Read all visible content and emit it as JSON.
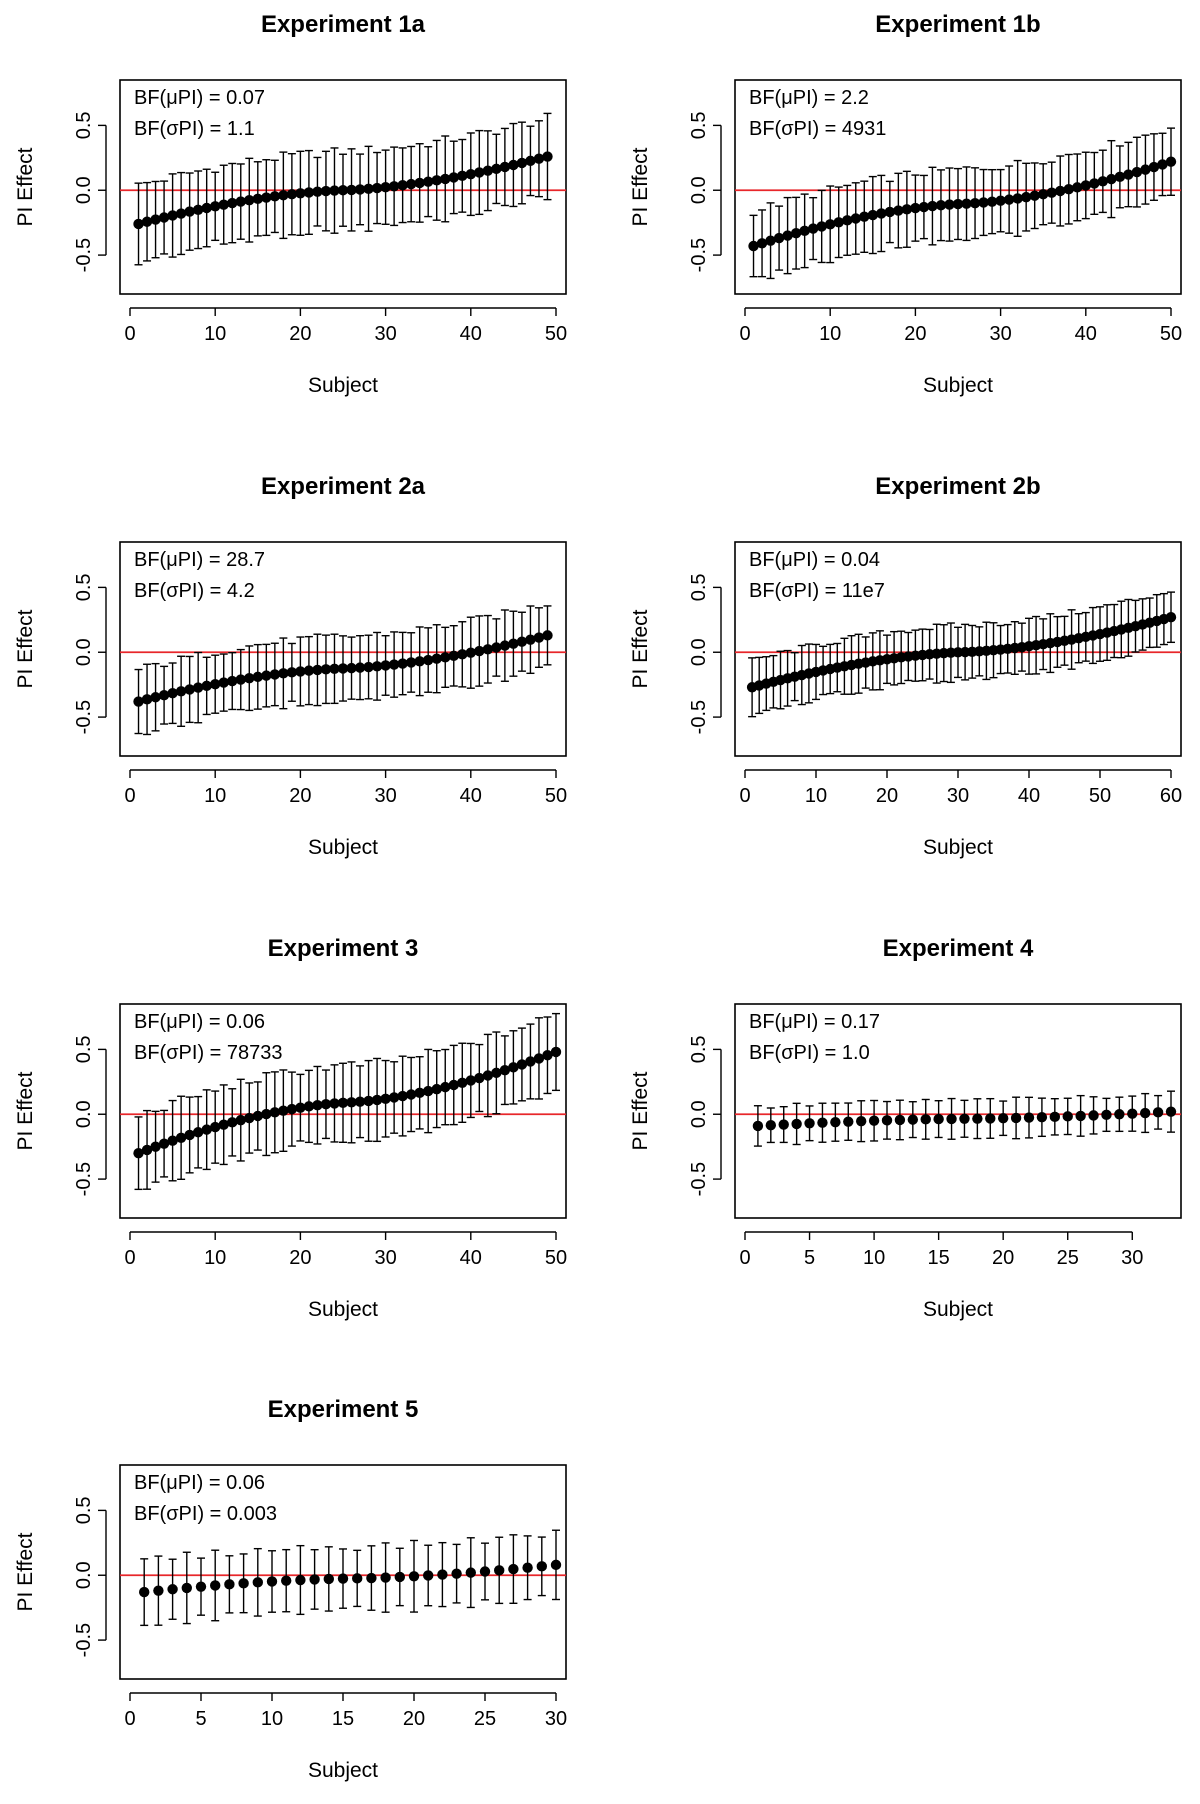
{
  "figure": {
    "colors": {
      "reference_line": "#e8262a",
      "points": "#000000",
      "background": "#ffffff"
    }
  },
  "chart_data": [
    {
      "type": "scatter",
      "title": "Experiment 1a",
      "xlabel": "Subject",
      "ylabel": "PI Effect",
      "xlim": [
        0,
        50
      ],
      "ylim": [
        -0.8,
        0.85
      ],
      "xticks": [
        0,
        10,
        20,
        30,
        40,
        50
      ],
      "yticks": [
        -0.5,
        0.0,
        0.5
      ],
      "ytick_labels": [
        "-0.5",
        "0.0",
        "0.5"
      ],
      "reference_line": 0,
      "annotations": [
        "BF(μPI) = 0.07",
        "BF(σPI) = 1.1"
      ],
      "n_subjects": 49,
      "effect_range": [
        -0.26,
        0.26
      ],
      "error_halfwidth": 0.29
    },
    {
      "type": "scatter",
      "title": "Experiment 1b",
      "xlabel": "Subject",
      "ylabel": "PI Effect",
      "xlim": [
        0,
        50
      ],
      "ylim": [
        -0.8,
        0.85
      ],
      "xticks": [
        0,
        10,
        20,
        30,
        40,
        50
      ],
      "yticks": [
        -0.5,
        0.0,
        0.5
      ],
      "ytick_labels": [
        "-0.5",
        "0.0",
        "0.5"
      ],
      "reference_line": 0,
      "annotations": [
        "BF(μPI) = 2.2",
        "BF(σPI) = 4931"
      ],
      "n_subjects": 50,
      "effect_range": [
        -0.43,
        0.22
      ],
      "error_halfwidth": 0.26
    },
    {
      "type": "scatter",
      "title": "Experiment 2a",
      "xlabel": "Subject",
      "ylabel": "PI Effect",
      "xlim": [
        0,
        50
      ],
      "ylim": [
        -0.8,
        0.85
      ],
      "xticks": [
        0,
        10,
        20,
        30,
        40,
        50
      ],
      "yticks": [
        -0.5,
        0.0,
        0.5
      ],
      "ytick_labels": [
        "-0.5",
        "0.0",
        "0.5"
      ],
      "reference_line": 0,
      "annotations": [
        "BF(μPI) = 28.7",
        "BF(σPI) = 4.2"
      ],
      "n_subjects": 49,
      "effect_range": [
        -0.38,
        0.13
      ],
      "error_halfwidth": 0.24
    },
    {
      "type": "scatter",
      "title": "Experiment 2b",
      "xlabel": "Subject",
      "ylabel": "PI Effect",
      "xlim": [
        0,
        60
      ],
      "ylim": [
        -0.8,
        0.85
      ],
      "xticks": [
        0,
        10,
        20,
        30,
        40,
        50,
        60
      ],
      "yticks": [
        -0.5,
        0.0,
        0.5
      ],
      "ytick_labels": [
        "-0.5",
        "0.0",
        "0.5"
      ],
      "reference_line": 0,
      "annotations": [
        "BF(μPI) = 0.04",
        "BF(σPI) = 11e7"
      ],
      "n_subjects": 60,
      "effect_range": [
        -0.27,
        0.27
      ],
      "error_halfwidth": 0.2
    },
    {
      "type": "scatter",
      "title": "Experiment 3",
      "xlabel": "Subject",
      "ylabel": "PI Effect",
      "xlim": [
        0,
        50
      ],
      "ylim": [
        -0.8,
        0.85
      ],
      "xticks": [
        0,
        10,
        20,
        30,
        40,
        50
      ],
      "yticks": [
        -0.5,
        0.0,
        0.5
      ],
      "ytick_labels": [
        "-0.5",
        "0.0",
        "0.5"
      ],
      "reference_line": 0,
      "annotations": [
        "BF(μPI) = 0.06",
        "BF(σPI) = 78733"
      ],
      "n_subjects": 50,
      "effect_range": [
        -0.3,
        0.48
      ],
      "error_halfwidth": 0.28
    },
    {
      "type": "scatter",
      "title": "Experiment 4",
      "xlabel": "Subject",
      "ylabel": "PI Effect",
      "xlim": [
        0,
        33
      ],
      "ylim": [
        -0.8,
        0.85
      ],
      "xticks": [
        0,
        5,
        10,
        15,
        20,
        25,
        30
      ],
      "yticks": [
        -0.5,
        0.0,
        0.5
      ],
      "ytick_labels": [
        "-0.5",
        "0.0",
        "0.5"
      ],
      "reference_line": 0,
      "annotations": [
        "BF(μPI) = 0.17",
        "BF(σPI) = 1.0"
      ],
      "n_subjects": 33,
      "effect_range": [
        -0.09,
        0.02
      ],
      "error_halfwidth": 0.14
    },
    {
      "type": "scatter",
      "title": "Experiment 5",
      "xlabel": "Subject",
      "ylabel": "PI Effect",
      "xlim": [
        0,
        30
      ],
      "ylim": [
        -0.8,
        0.85
      ],
      "xticks": [
        0,
        5,
        10,
        15,
        20,
        25,
        30
      ],
      "yticks": [
        -0.5,
        0.0,
        0.5
      ],
      "ytick_labels": [
        "-0.5",
        "0.0",
        "0.5"
      ],
      "reference_line": 0,
      "annotations": [
        "BF(μPI) = 0.06",
        "BF(σPI) = 0.003"
      ],
      "n_subjects": 30,
      "effect_range": [
        -0.13,
        0.08
      ],
      "error_halfwidth": 0.24
    }
  ]
}
